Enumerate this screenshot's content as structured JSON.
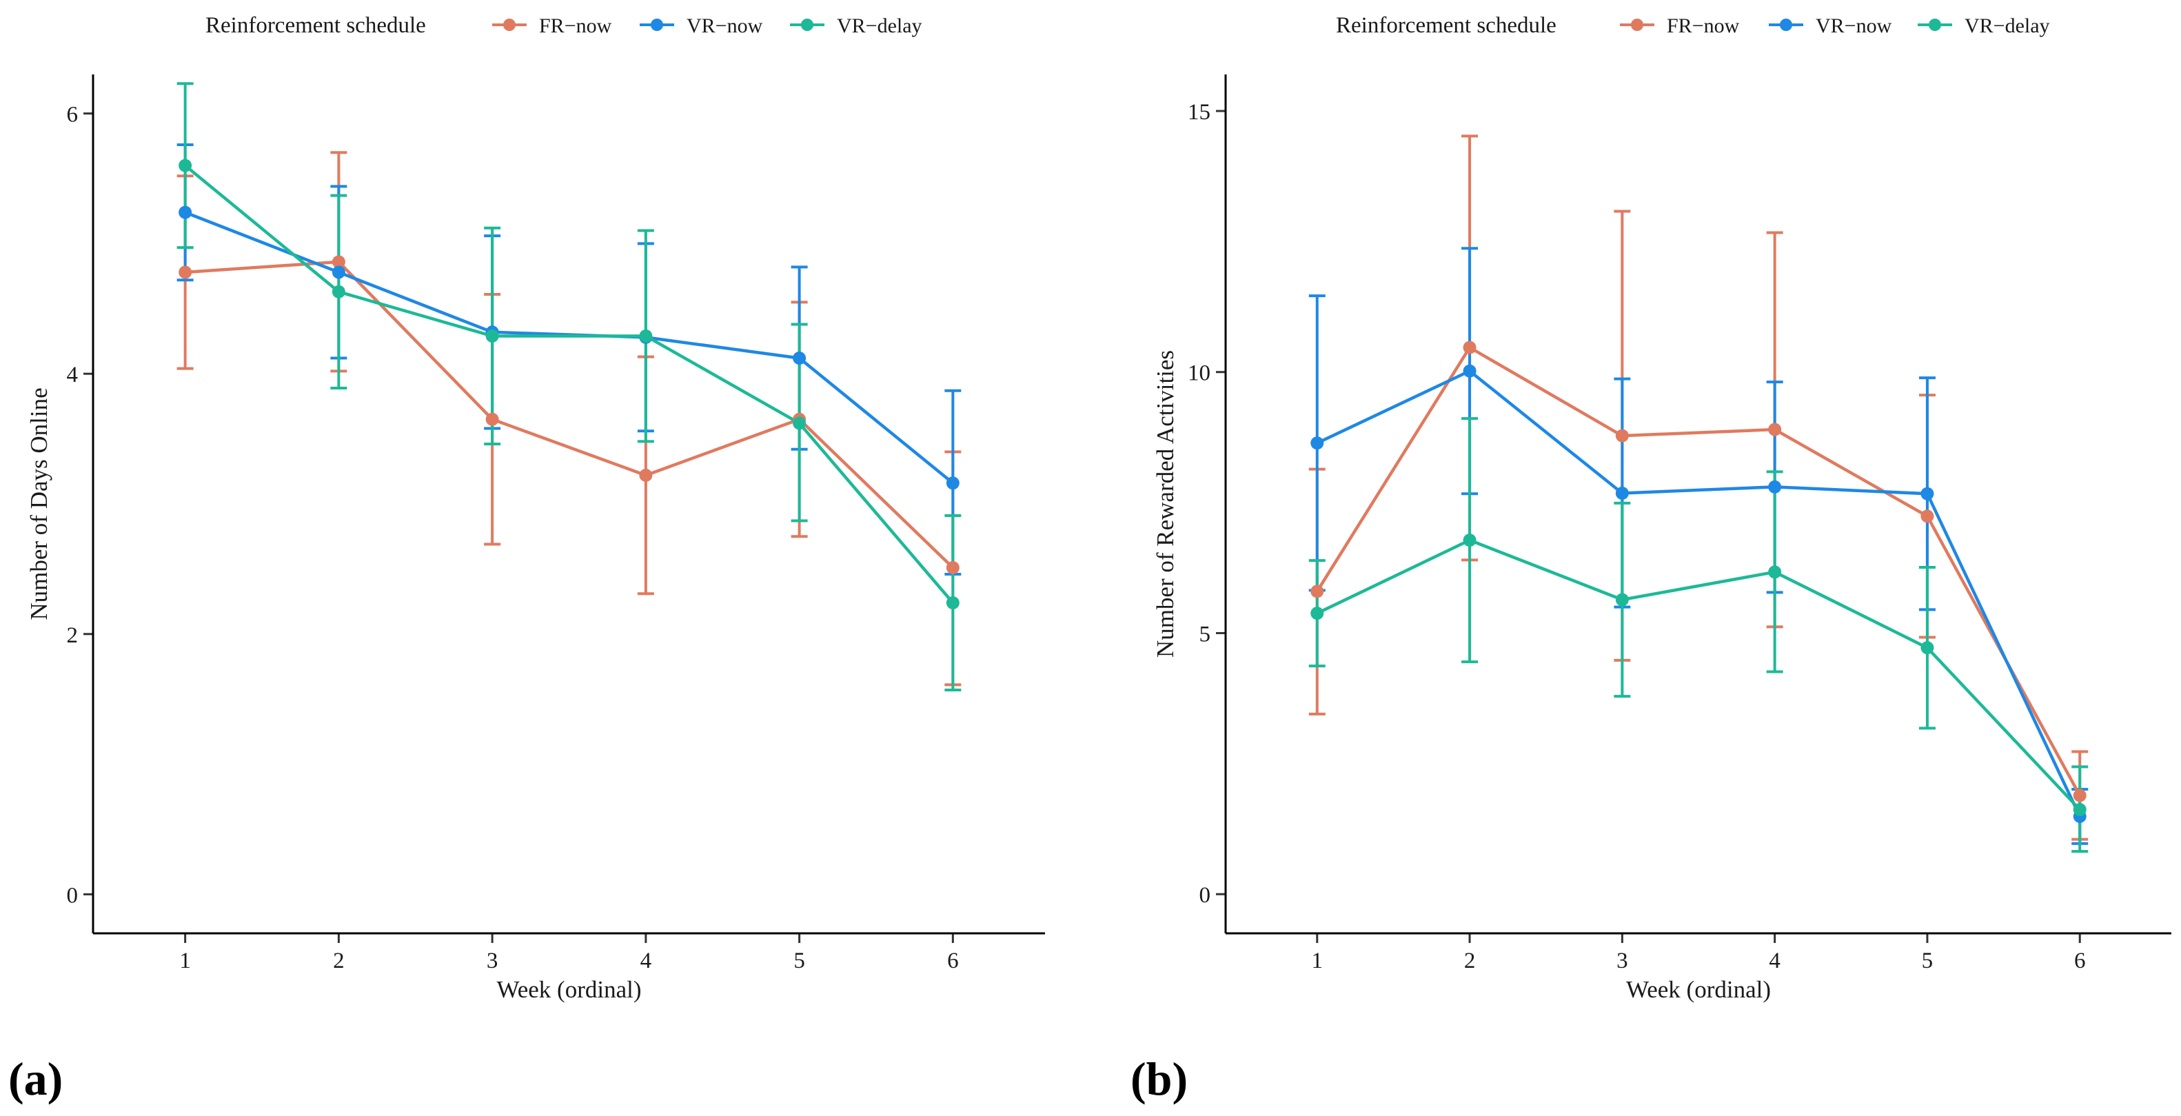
{
  "chart_data": [
    {
      "panel_label": "(a)",
      "type": "line",
      "xlabel": "Week (ordinal)",
      "ylabel": "Number of Days Online",
      "categories": [
        "1",
        "2",
        "3",
        "4",
        "5",
        "6"
      ],
      "x": [
        1,
        2,
        3,
        4,
        5,
        6
      ],
      "xlim": [
        0.4,
        6.6
      ],
      "ylim": [
        -0.3,
        6.3
      ],
      "yticks": [
        0,
        2,
        4,
        6
      ],
      "legend": {
        "title": "Reinforcement schedule",
        "position": "top"
      },
      "grid": false,
      "series": [
        {
          "name": "FR−now",
          "color": "#E07A5F",
          "values": [
            4.78,
            4.86,
            3.65,
            3.22,
            3.65,
            2.51
          ],
          "lower": [
            4.04,
            4.02,
            2.69,
            2.31,
            2.75,
            1.61
          ],
          "upper": [
            5.52,
            5.7,
            4.61,
            4.13,
            4.55,
            3.4
          ]
        },
        {
          "name": "VR−now",
          "color": "#1E88E5",
          "values": [
            5.24,
            4.78,
            4.32,
            4.28,
            4.12,
            3.16
          ],
          "lower": [
            4.72,
            4.12,
            3.58,
            3.56,
            3.42,
            2.46
          ],
          "upper": [
            5.76,
            5.44,
            5.06,
            5.0,
            4.82,
            3.87
          ]
        },
        {
          "name": "VR−delay",
          "color": "#1DB997",
          "values": [
            5.6,
            4.63,
            4.29,
            4.29,
            3.62,
            2.24
          ],
          "lower": [
            4.97,
            3.89,
            3.46,
            3.48,
            2.87,
            1.57
          ],
          "upper": [
            6.23,
            5.37,
            5.12,
            5.1,
            4.38,
            2.91
          ]
        }
      ]
    },
    {
      "panel_label": "(b)",
      "type": "line",
      "xlabel": "Week (ordinal)",
      "ylabel": "Number of Rewarded Activities",
      "categories": [
        "1",
        "2",
        "3",
        "4",
        "5",
        "6"
      ],
      "x": [
        1,
        2,
        3,
        4,
        5,
        6
      ],
      "xlim": [
        0.4,
        6.6
      ],
      "ylim": [
        -0.75,
        15.7
      ],
      "yticks": [
        0,
        5,
        10,
        15
      ],
      "legend": {
        "title": "Reinforcement schedule",
        "position": "top"
      },
      "grid": false,
      "series": [
        {
          "name": "FR−now",
          "color": "#E07A5F",
          "values": [
            5.8,
            10.47,
            8.78,
            8.9,
            7.24,
            1.89
          ],
          "lower": [
            3.45,
            6.4,
            4.48,
            5.12,
            4.92,
            1.05
          ],
          "upper": [
            8.14,
            14.52,
            13.08,
            12.67,
            9.56,
            2.73
          ]
        },
        {
          "name": "VR−now",
          "color": "#1E88E5",
          "values": [
            8.64,
            10.02,
            7.68,
            7.8,
            7.67,
            1.49
          ],
          "lower": [
            5.82,
            7.67,
            5.5,
            5.78,
            5.45,
            0.97
          ],
          "upper": [
            11.46,
            12.37,
            9.87,
            9.81,
            9.89,
            2.01
          ]
        },
        {
          "name": "VR−delay",
          "color": "#1DB997",
          "values": [
            5.38,
            6.78,
            5.64,
            6.17,
            4.72,
            1.62
          ],
          "lower": [
            4.37,
            4.45,
            3.79,
            4.26,
            3.18,
            0.82
          ],
          "upper": [
            6.39,
            9.11,
            7.49,
            8.09,
            6.26,
            2.44
          ]
        }
      ]
    }
  ]
}
